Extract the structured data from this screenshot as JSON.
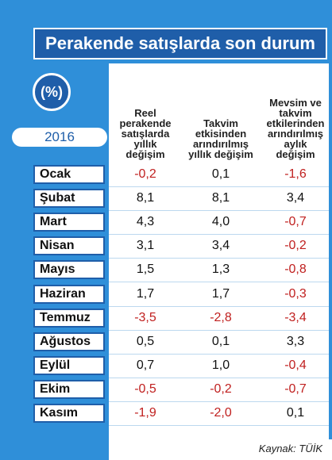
{
  "header": {
    "title": "Perakende satışlarda son durum",
    "unit": "(%)",
    "year": "2016"
  },
  "table": {
    "columns": [
      "Reel\nperakende\nsatışlarda\nyıllık\ndeğişim",
      "Takvim\netkisinden\narındırılmış\nyıllık değişim",
      "Mevsim ve\ntakvim\netkilerinden\narındırılmış\naylık\ndeğişim"
    ],
    "rows": [
      [
        "Ocak",
        "-0,2",
        "0,1",
        "-1,6"
      ],
      [
        "Şubat",
        "8,1",
        "8,1",
        "3,4"
      ],
      [
        "Mart",
        "4,3",
        "4,0",
        "-0,7"
      ],
      [
        "Nisan",
        "3,1",
        "3,4",
        "-0,2"
      ],
      [
        "Mayıs",
        "1,5",
        "1,3",
        "-0,8"
      ],
      [
        "Haziran",
        "1,7",
        "1,7",
        "-0,3"
      ],
      [
        "Temmuz",
        "-3,5",
        "-2,8",
        "-3,4"
      ],
      [
        "Ağustos",
        "0,5",
        "0,1",
        "3,3"
      ],
      [
        "Eylül",
        "0,7",
        "1,0",
        "-0,4"
      ],
      [
        "Ekim",
        "-0,5",
        "-0,2",
        "-0,7"
      ],
      [
        "Kasım",
        "-1,9",
        "-2,0",
        "0,1"
      ]
    ]
  },
  "footer": {
    "source": "Kaynak: TÜİK"
  }
}
